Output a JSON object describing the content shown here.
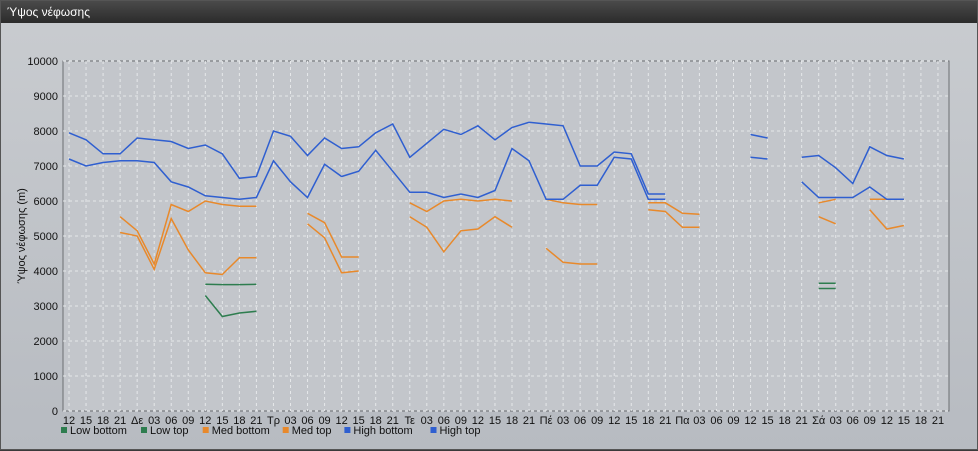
{
  "window": {
    "title": "Ύψος νέφωσης"
  },
  "chart_data": {
    "type": "line",
    "title": "Ύψος νέφωσης",
    "ylabel": "Ύψος νέφωσης (m)",
    "xlabel": "",
    "ylim": [
      0,
      10000
    ],
    "yticks": [
      0,
      1000,
      2000,
      3000,
      4000,
      5000,
      6000,
      7000,
      8000,
      9000,
      10000
    ],
    "grid": true,
    "legend_position": "bottom-left",
    "categories": [
      "12",
      "15",
      "18",
      "21",
      "Δε",
      "03",
      "06",
      "09",
      "12",
      "15",
      "18",
      "21",
      "Τρ",
      "03",
      "06",
      "09",
      "12",
      "15",
      "18",
      "21",
      "Τε",
      "03",
      "06",
      "09",
      "12",
      "15",
      "18",
      "21",
      "Πέ",
      "03",
      "06",
      "09",
      "12",
      "15",
      "18",
      "21",
      "Πα",
      "03",
      "06",
      "09",
      "12",
      "15",
      "18",
      "21",
      "Σά",
      "03",
      "06",
      "09",
      "12",
      "15",
      "18",
      "21"
    ],
    "series": [
      {
        "name": "Low bottom",
        "color": "#2e7d4f",
        "values": [
          null,
          null,
          null,
          null,
          null,
          null,
          null,
          null,
          3300,
          2700,
          2800,
          2850,
          null,
          null,
          null,
          null,
          null,
          null,
          null,
          null,
          null,
          null,
          null,
          null,
          null,
          null,
          null,
          null,
          null,
          null,
          null,
          null,
          null,
          null,
          null,
          null,
          null,
          null,
          null,
          null,
          null,
          null,
          null,
          null,
          3500,
          3500,
          null,
          null,
          null,
          null,
          null,
          null
        ]
      },
      {
        "name": "Low top",
        "color": "#2e7d4f",
        "values": [
          null,
          null,
          null,
          null,
          null,
          null,
          null,
          null,
          3620,
          3610,
          3610,
          3620,
          null,
          null,
          null,
          null,
          null,
          null,
          null,
          null,
          null,
          null,
          null,
          null,
          null,
          null,
          null,
          null,
          null,
          null,
          null,
          null,
          null,
          null,
          null,
          null,
          null,
          null,
          null,
          null,
          null,
          null,
          null,
          null,
          3650,
          3650,
          null,
          null,
          null,
          null,
          null,
          null
        ]
      },
      {
        "name": "Med bottom",
        "color": "#e8892b",
        "values": [
          null,
          null,
          null,
          5100,
          5000,
          4050,
          5500,
          4600,
          3950,
          3900,
          4380,
          4380,
          null,
          null,
          5350,
          4950,
          3950,
          4000,
          null,
          null,
          5550,
          5250,
          4550,
          5150,
          5200,
          5550,
          5250,
          null,
          4650,
          4250,
          4200,
          4200,
          null,
          null,
          5750,
          5700,
          5250,
          5250,
          null,
          null,
          null,
          null,
          null,
          null,
          5550,
          5350,
          null,
          5750,
          5200,
          5300,
          null,
          null
        ]
      },
      {
        "name": "Med top",
        "color": "#e8892b",
        "values": [
          null,
          null,
          null,
          5550,
          5150,
          4200,
          5900,
          5700,
          6000,
          5900,
          5850,
          5850,
          null,
          null,
          5650,
          5380,
          4400,
          4400,
          null,
          null,
          5950,
          5700,
          6000,
          6050,
          6000,
          6050,
          6000,
          null,
          6050,
          5950,
          5900,
          5900,
          null,
          null,
          5950,
          5950,
          5650,
          5620,
          null,
          null,
          null,
          null,
          null,
          null,
          5950,
          6050,
          null,
          6050,
          6050,
          6050,
          null,
          null
        ]
      },
      {
        "name": "High bottom",
        "color": "#2f5fd0",
        "values": [
          7200,
          7000,
          7100,
          7150,
          7150,
          7100,
          6550,
          6400,
          6150,
          6100,
          6050,
          6100,
          7150,
          6550,
          6100,
          7050,
          6700,
          6850,
          7450,
          6850,
          6250,
          6250,
          6100,
          6200,
          6100,
          6300,
          7500,
          7150,
          6050,
          6050,
          6450,
          6450,
          7250,
          7200,
          6050,
          6050,
          null,
          null,
          null,
          null,
          7250,
          7200,
          null,
          6550,
          6100,
          6100,
          6100,
          6400,
          6050,
          6050,
          null,
          null
        ]
      },
      {
        "name": "High top",
        "color": "#2f5fd0",
        "values": [
          7950,
          7750,
          7350,
          7350,
          7800,
          7750,
          7700,
          7500,
          7600,
          7350,
          6650,
          6700,
          8000,
          7850,
          7300,
          7800,
          7500,
          7550,
          7950,
          8200,
          7250,
          7650,
          8050,
          7900,
          8150,
          7750,
          8100,
          8250,
          8200,
          8150,
          7000,
          7000,
          7400,
          7350,
          6200,
          6200,
          null,
          null,
          null,
          null,
          7900,
          7800,
          null,
          7250,
          7300,
          6950,
          6500,
          7550,
          7300,
          7200,
          null,
          null
        ]
      }
    ]
  }
}
